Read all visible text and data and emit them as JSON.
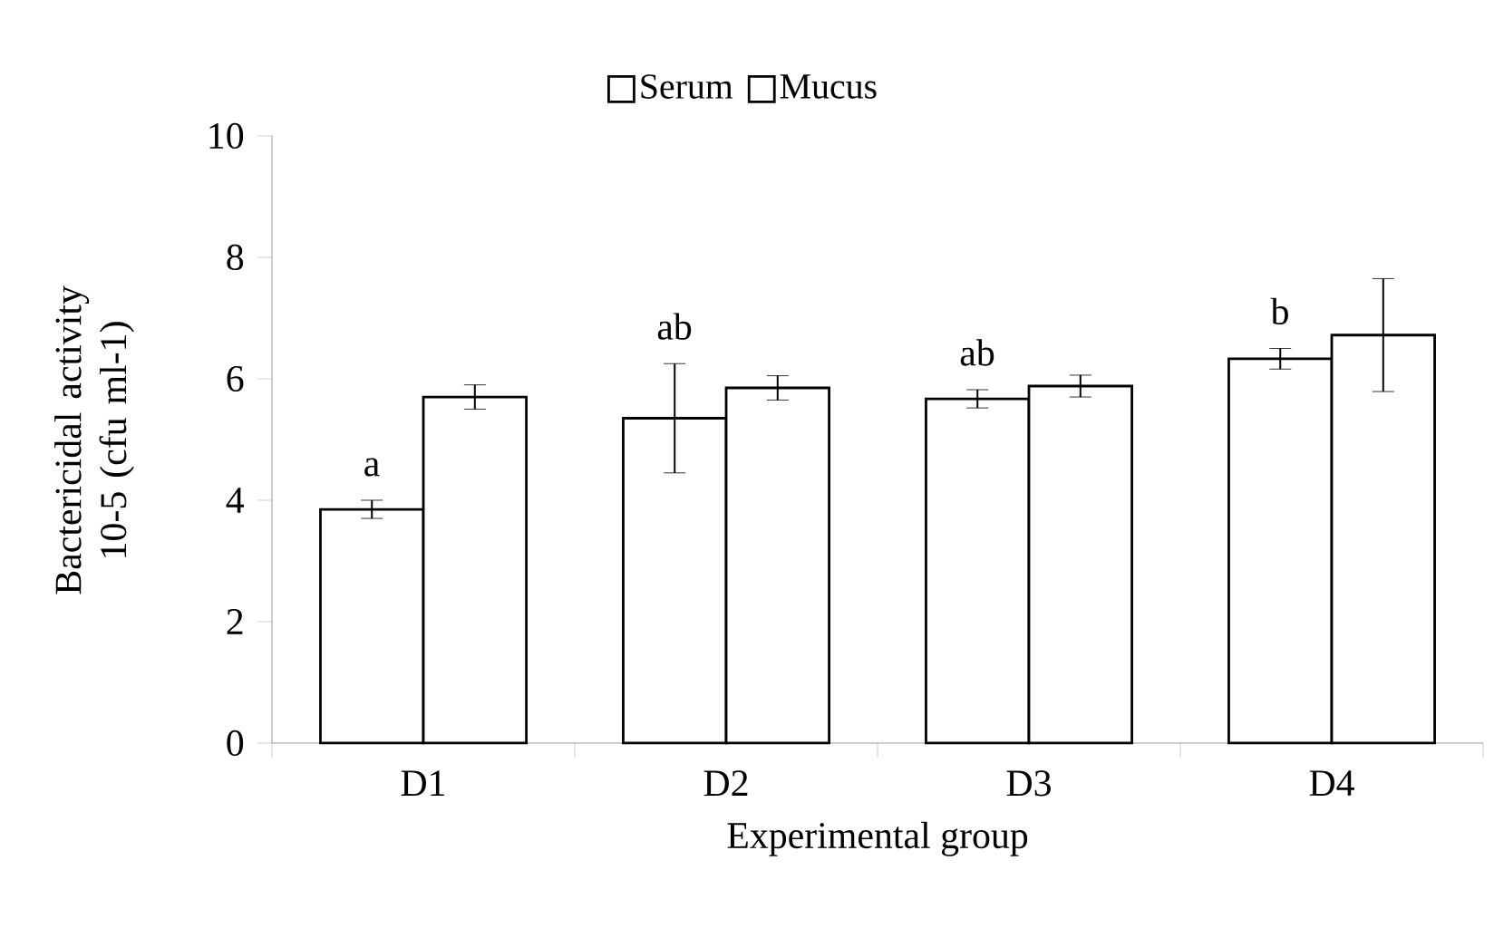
{
  "chart_data": {
    "type": "bar",
    "xlabel": "Experimental group",
    "ylabel": "Bactericidal activity 10-5 (cfu ml-1)",
    "categories": [
      "D1",
      "D2",
      "D3",
      "D4"
    ],
    "series": [
      {
        "name": "Serum",
        "color": "#000000",
        "values": [
          3.85,
          5.35,
          5.67,
          6.33
        ],
        "errors": [
          0.15,
          0.9,
          0.15,
          0.17
        ]
      },
      {
        "name": "Mucus",
        "color": "#000000",
        "values": [
          5.7,
          5.85,
          5.88,
          6.72
        ],
        "errors": [
          0.2,
          0.2,
          0.18,
          0.93
        ]
      }
    ],
    "ylim": [
      0,
      10
    ],
    "yticks": [
      0,
      2,
      4,
      6,
      8,
      10
    ],
    "grid": false,
    "legend": "top",
    "annotations": [
      "a",
      "ab",
      "ab",
      "b"
    ]
  }
}
